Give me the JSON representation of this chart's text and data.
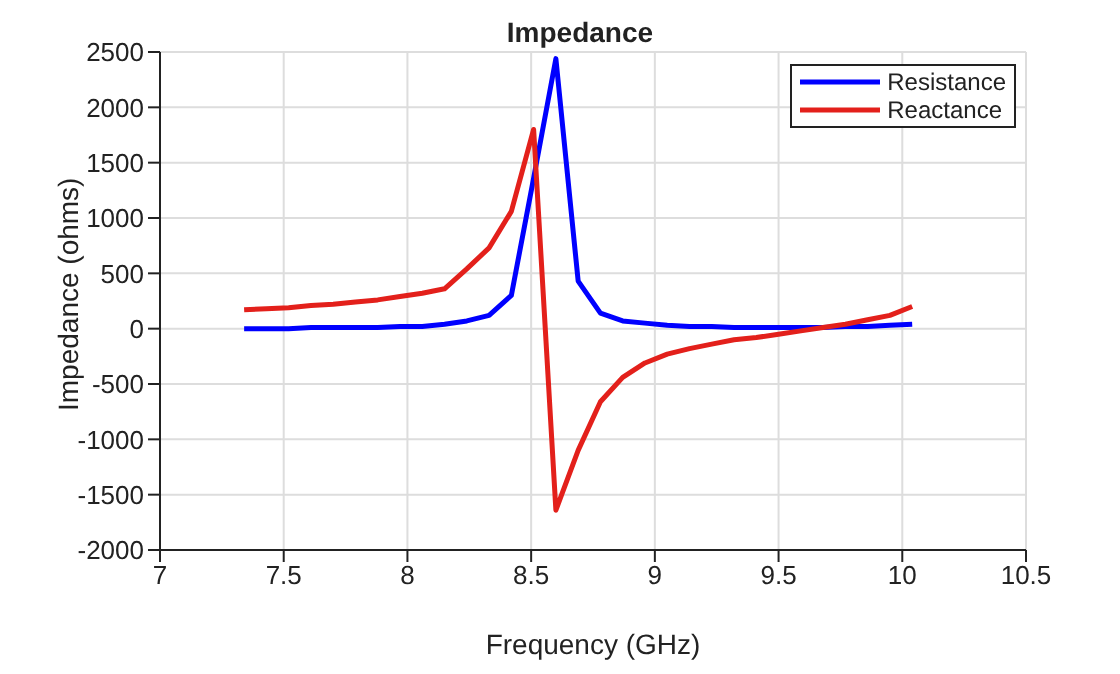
{
  "chart_data": {
    "type": "line",
    "title": "Impedance",
    "xlabel": "Frequency (GHz)",
    "ylabel": "Impedance (ohms)",
    "x": [
      7.34,
      7.43,
      7.52,
      7.61,
      7.7,
      7.79,
      7.88,
      7.97,
      8.06,
      8.15,
      8.24,
      8.33,
      8.42,
      8.51,
      8.6,
      8.69,
      8.78,
      8.87,
      8.96,
      9.05,
      9.14,
      9.23,
      9.32,
      9.41,
      9.5,
      9.59,
      9.68,
      9.77,
      9.86,
      9.95,
      10.04
    ],
    "series": [
      {
        "name": "Resistance",
        "color": "#0000ff",
        "values": [
          0,
          0,
          0,
          10,
          10,
          10,
          10,
          20,
          20,
          40,
          70,
          120,
          300,
          1360,
          2440,
          430,
          140,
          70,
          50,
          30,
          20,
          20,
          10,
          10,
          10,
          10,
          10,
          20,
          20,
          30,
          40
        ]
      },
      {
        "name": "Reactance",
        "color": "#e3201b",
        "values": [
          170,
          180,
          190,
          210,
          220,
          240,
          260,
          290,
          320,
          360,
          540,
          730,
          1060,
          1800,
          -1640,
          -1100,
          -660,
          -440,
          -310,
          -230,
          -180,
          -140,
          -100,
          -80,
          -50,
          -20,
          10,
          40,
          80,
          120,
          200
        ]
      }
    ],
    "xlim": [
      7,
      10.5
    ],
    "xticks": [
      7,
      7.5,
      8,
      8.5,
      9,
      9.5,
      10,
      10.5
    ],
    "ylim": [
      -2000,
      2500
    ],
    "yticks": [
      -2000,
      -1500,
      -1000,
      -500,
      0,
      500,
      1000,
      1500,
      2000,
      2500
    ],
    "grid": true,
    "legend": "top right",
    "marker": "none",
    "line_style": "solid"
  }
}
